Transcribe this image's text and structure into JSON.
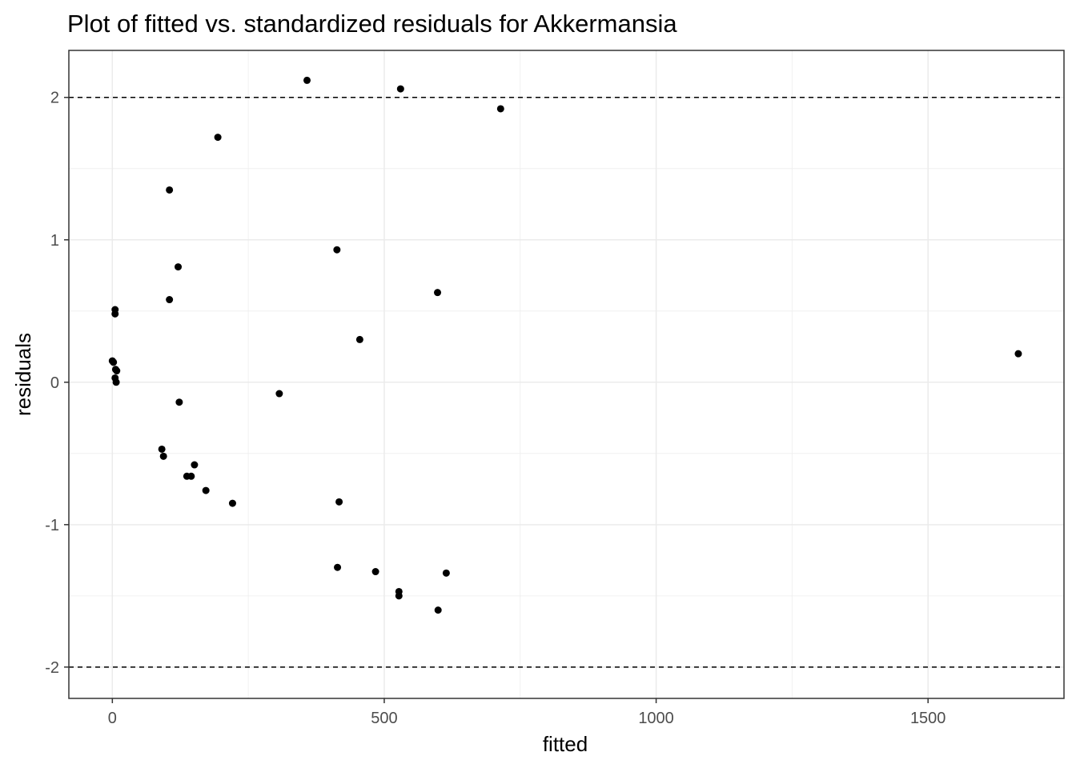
{
  "chart_data": {
    "type": "scatter",
    "title": "Plot of fitted vs. standardized residuals for Akkermansia",
    "xlabel": "fitted",
    "ylabel": "residuals",
    "xlim": [
      -80,
      1750
    ],
    "ylim": [
      -2.22,
      2.33
    ],
    "x_ticks": [
      0,
      500,
      1000,
      1500
    ],
    "x_tick_labels": [
      "0",
      "500",
      "1000",
      "1500"
    ],
    "y_ticks": [
      -2,
      -1,
      0,
      1,
      2
    ],
    "y_tick_labels": [
      "-2",
      "-1",
      "0",
      "1",
      "2"
    ],
    "reference_lines": [
      2,
      -2
    ],
    "grid": true,
    "point_color": "#000000",
    "points": [
      {
        "x": 0,
        "y": 0.15
      },
      {
        "x": 2,
        "y": 0.14
      },
      {
        "x": 5,
        "y": 0.51
      },
      {
        "x": 5,
        "y": 0.48
      },
      {
        "x": 6,
        "y": 0.09
      },
      {
        "x": 8,
        "y": 0.08
      },
      {
        "x": 5,
        "y": 0.03
      },
      {
        "x": 7,
        "y": 0.0
      },
      {
        "x": 91,
        "y": -0.47
      },
      {
        "x": 94,
        "y": -0.52
      },
      {
        "x": 105,
        "y": 1.35
      },
      {
        "x": 105,
        "y": 0.58
      },
      {
        "x": 121,
        "y": 0.81
      },
      {
        "x": 123,
        "y": -0.14
      },
      {
        "x": 137,
        "y": -0.66
      },
      {
        "x": 145,
        "y": -0.66
      },
      {
        "x": 151,
        "y": -0.58
      },
      {
        "x": 172,
        "y": -0.76
      },
      {
        "x": 194,
        "y": 1.72
      },
      {
        "x": 221,
        "y": -0.85
      },
      {
        "x": 307,
        "y": -0.08
      },
      {
        "x": 358,
        "y": 2.12
      },
      {
        "x": 413,
        "y": 0.93
      },
      {
        "x": 414,
        "y": -1.3
      },
      {
        "x": 417,
        "y": -0.84
      },
      {
        "x": 455,
        "y": 0.3
      },
      {
        "x": 484,
        "y": -1.33
      },
      {
        "x": 527,
        "y": -1.47
      },
      {
        "x": 527,
        "y": -1.5
      },
      {
        "x": 530,
        "y": 2.06
      },
      {
        "x": 598,
        "y": 0.63
      },
      {
        "x": 599,
        "y": -1.6
      },
      {
        "x": 614,
        "y": -1.34
      },
      {
        "x": 714,
        "y": 1.92
      },
      {
        "x": 1666,
        "y": 0.2
      }
    ]
  }
}
